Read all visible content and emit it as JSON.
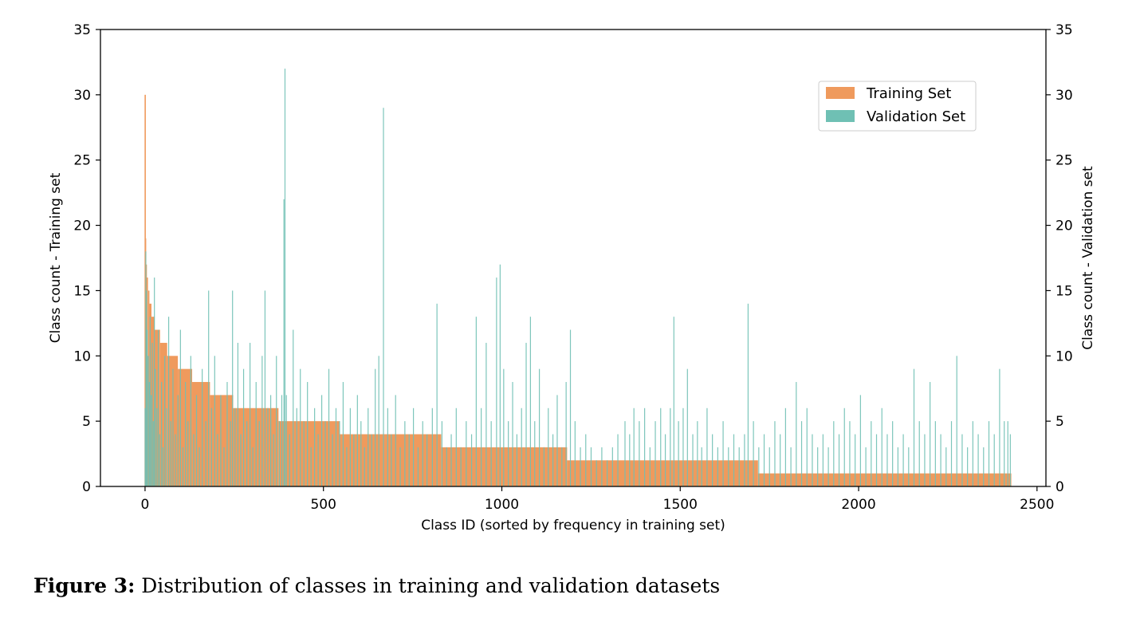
{
  "chart_data": {
    "type": "bar",
    "xlabel": "Class ID (sorted by frequency in training set)",
    "ylabel_left": "Class count - Training set",
    "ylabel_right": "Class count - Validation set",
    "xlim": [
      -125,
      2525
    ],
    "ylim": [
      0,
      35
    ],
    "xticks": [
      0,
      500,
      1000,
      1500,
      2000,
      2500
    ],
    "yticks": [
      0,
      5,
      10,
      15,
      20,
      25,
      30,
      35
    ],
    "legend_position": "upper right",
    "grid": false,
    "series": [
      {
        "name": "Training Set",
        "color": "#ef9a5d",
        "axis": "left",
        "spikes": [
          {
            "x": 0,
            "y": 30
          },
          {
            "x": 1,
            "y": 19
          },
          {
            "x": 3,
            "y": 17
          },
          {
            "x": 6,
            "y": 16
          },
          {
            "x": 10,
            "y": 15
          }
        ],
        "segments": [
          {
            "x_start": 12,
            "x_end": 18,
            "y": 14
          },
          {
            "x_start": 18,
            "x_end": 27,
            "y": 13
          },
          {
            "x_start": 27,
            "x_end": 42,
            "y": 12
          },
          {
            "x_start": 42,
            "x_end": 62,
            "y": 11
          },
          {
            "x_start": 62,
            "x_end": 92,
            "y": 10
          },
          {
            "x_start": 92,
            "x_end": 132,
            "y": 9
          },
          {
            "x_start": 132,
            "x_end": 182,
            "y": 8
          },
          {
            "x_start": 182,
            "x_end": 247,
            "y": 7
          },
          {
            "x_start": 247,
            "x_end": 374,
            "y": 6
          },
          {
            "x_start": 374,
            "x_end": 545,
            "y": 5
          },
          {
            "x_start": 545,
            "x_end": 830,
            "y": 4
          },
          {
            "x_start": 830,
            "x_end": 1183,
            "y": 3
          },
          {
            "x_start": 1183,
            "x_end": 1718,
            "y": 2
          },
          {
            "x_start": 1718,
            "x_end": 2428,
            "y": 1
          }
        ]
      },
      {
        "name": "Validation Set",
        "color": "#6fc0b4",
        "axis": "right",
        "bars": [
          [
            0,
            6
          ],
          [
            2,
            18
          ],
          [
            4,
            15
          ],
          [
            6,
            12
          ],
          [
            9,
            10
          ],
          [
            12,
            8
          ],
          [
            14,
            13
          ],
          [
            17,
            7
          ],
          [
            20,
            11
          ],
          [
            23,
            5
          ],
          [
            26,
            16
          ],
          [
            29,
            9
          ],
          [
            33,
            6
          ],
          [
            37,
            12
          ],
          [
            41,
            4
          ],
          [
            46,
            8
          ],
          [
            50,
            3
          ],
          [
            55,
            10
          ],
          [
            60,
            6
          ],
          [
            66,
            13
          ],
          [
            72,
            5
          ],
          [
            78,
            9
          ],
          [
            85,
            4
          ],
          [
            92,
            7
          ],
          [
            99,
            12
          ],
          [
            106,
            3
          ],
          [
            113,
            8
          ],
          [
            120,
            5
          ],
          [
            128,
            10
          ],
          [
            136,
            4
          ],
          [
            144,
            7
          ],
          [
            152,
            3
          ],
          [
            160,
            9
          ],
          [
            170,
            5
          ],
          [
            178,
            15
          ],
          [
            186,
            6
          ],
          [
            195,
            10
          ],
          [
            203,
            4
          ],
          [
            212,
            7
          ],
          [
            221,
            3
          ],
          [
            230,
            8
          ],
          [
            239,
            5
          ],
          [
            245,
            15
          ],
          [
            252,
            6
          ],
          [
            260,
            11
          ],
          [
            268,
            4
          ],
          [
            276,
            9
          ],
          [
            285,
            5
          ],
          [
            294,
            11
          ],
          [
            302,
            3
          ],
          [
            311,
            8
          ],
          [
            320,
            5
          ],
          [
            328,
            10
          ],
          [
            336,
            15
          ],
          [
            344,
            6
          ],
          [
            352,
            7
          ],
          [
            360,
            4
          ],
          [
            368,
            10
          ],
          [
            376,
            5
          ],
          [
            383,
            7
          ],
          [
            389,
            22
          ],
          [
            392,
            32
          ],
          [
            396,
            7
          ],
          [
            405,
            4
          ],
          [
            415,
            12
          ],
          [
            425,
            6
          ],
          [
            435,
            9
          ],
          [
            445,
            5
          ],
          [
            455,
            8
          ],
          [
            465,
            3
          ],
          [
            475,
            6
          ],
          [
            485,
            4
          ],
          [
            495,
            7
          ],
          [
            505,
            5
          ],
          [
            515,
            9
          ],
          [
            525,
            4
          ],
          [
            535,
            6
          ],
          [
            545,
            5
          ],
          [
            555,
            8
          ],
          [
            565,
            3
          ],
          [
            575,
            6
          ],
          [
            585,
            4
          ],
          [
            595,
            7
          ],
          [
            605,
            5
          ],
          [
            615,
            3
          ],
          [
            625,
            6
          ],
          [
            635,
            4
          ],
          [
            645,
            9
          ],
          [
            655,
            10
          ],
          [
            668,
            29
          ],
          [
            680,
            6
          ],
          [
            690,
            4
          ],
          [
            702,
            7
          ],
          [
            715,
            3
          ],
          [
            728,
            5
          ],
          [
            740,
            4
          ],
          [
            752,
            6
          ],
          [
            765,
            3
          ],
          [
            778,
            5
          ],
          [
            790,
            4
          ],
          [
            805,
            6
          ],
          [
            818,
            14
          ],
          [
            832,
            5
          ],
          [
            845,
            3
          ],
          [
            858,
            4
          ],
          [
            872,
            6
          ],
          [
            885,
            3
          ],
          [
            900,
            5
          ],
          [
            915,
            4
          ],
          [
            928,
            13
          ],
          [
            942,
            6
          ],
          [
            956,
            11
          ],
          [
            970,
            5
          ],
          [
            985,
            16
          ],
          [
            995,
            17
          ],
          [
            1005,
            9
          ],
          [
            1018,
            5
          ],
          [
            1030,
            8
          ],
          [
            1042,
            4
          ],
          [
            1055,
            6
          ],
          [
            1068,
            11
          ],
          [
            1080,
            13
          ],
          [
            1092,
            5
          ],
          [
            1105,
            9
          ],
          [
            1118,
            3
          ],
          [
            1130,
            6
          ],
          [
            1143,
            4
          ],
          [
            1155,
            7
          ],
          [
            1168,
            3
          ],
          [
            1180,
            8
          ],
          [
            1192,
            12
          ],
          [
            1205,
            5
          ],
          [
            1220,
            3
          ],
          [
            1235,
            4
          ],
          [
            1250,
            3
          ],
          [
            1265,
            2
          ],
          [
            1280,
            3
          ],
          [
            1295,
            2
          ],
          [
            1310,
            3
          ],
          [
            1325,
            4
          ],
          [
            1345,
            5
          ],
          [
            1358,
            4
          ],
          [
            1370,
            6
          ],
          [
            1385,
            5
          ],
          [
            1400,
            6
          ],
          [
            1415,
            3
          ],
          [
            1430,
            5
          ],
          [
            1445,
            6
          ],
          [
            1458,
            4
          ],
          [
            1472,
            6
          ],
          [
            1482,
            13
          ],
          [
            1495,
            5
          ],
          [
            1508,
            6
          ],
          [
            1520,
            9
          ],
          [
            1535,
            4
          ],
          [
            1548,
            5
          ],
          [
            1560,
            3
          ],
          [
            1575,
            6
          ],
          [
            1590,
            4
          ],
          [
            1605,
            3
          ],
          [
            1620,
            5
          ],
          [
            1635,
            3
          ],
          [
            1650,
            4
          ],
          [
            1665,
            3
          ],
          [
            1680,
            4
          ],
          [
            1690,
            14
          ],
          [
            1705,
            5
          ],
          [
            1720,
            3
          ],
          [
            1735,
            4
          ],
          [
            1750,
            3
          ],
          [
            1765,
            5
          ],
          [
            1780,
            4
          ],
          [
            1795,
            6
          ],
          [
            1810,
            3
          ],
          [
            1825,
            8
          ],
          [
            1840,
            5
          ],
          [
            1855,
            6
          ],
          [
            1870,
            4
          ],
          [
            1885,
            3
          ],
          [
            1900,
            4
          ],
          [
            1915,
            3
          ],
          [
            1930,
            5
          ],
          [
            1945,
            4
          ],
          [
            1960,
            6
          ],
          [
            1975,
            5
          ],
          [
            1990,
            4
          ],
          [
            2005,
            7
          ],
          [
            2020,
            3
          ],
          [
            2035,
            5
          ],
          [
            2050,
            4
          ],
          [
            2065,
            6
          ],
          [
            2080,
            4
          ],
          [
            2095,
            5
          ],
          [
            2110,
            3
          ],
          [
            2125,
            4
          ],
          [
            2140,
            3
          ],
          [
            2155,
            9
          ],
          [
            2170,
            5
          ],
          [
            2185,
            4
          ],
          [
            2200,
            8
          ],
          [
            2215,
            5
          ],
          [
            2230,
            4
          ],
          [
            2245,
            3
          ],
          [
            2260,
            5
          ],
          [
            2275,
            10
          ],
          [
            2290,
            4
          ],
          [
            2305,
            3
          ],
          [
            2320,
            5
          ],
          [
            2335,
            4
          ],
          [
            2350,
            3
          ],
          [
            2365,
            5
          ],
          [
            2380,
            4
          ],
          [
            2395,
            9
          ],
          [
            2408,
            5
          ],
          [
            2418,
            5
          ],
          [
            2425,
            4
          ]
        ]
      }
    ]
  },
  "caption": {
    "label": "Figure 3:",
    "text": " Distribution of classes in training and validation datasets"
  }
}
